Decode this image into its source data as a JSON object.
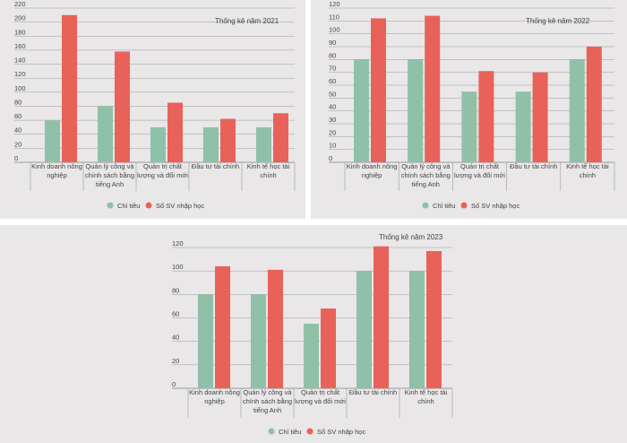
{
  "colors": {
    "target": "#8fc1a8",
    "enrolled": "#e8625a",
    "panel_bg": "#e9e7e8",
    "grid": "#9a9a9a"
  },
  "legend": {
    "target": "Chỉ tiêu",
    "enrolled": "Số SV nhập học"
  },
  "chart_data": [
    {
      "type": "bar",
      "title": "Thống kê năm 2021",
      "categories": [
        [
          "Kinh doanh nông",
          "nghiệp"
        ],
        [
          "Quản lý công và",
          "chính sách bằng",
          "tiếng Anh"
        ],
        [
          "Quản trị chất",
          "lượng và đổi mới"
        ],
        [
          "Đầu tư tài chính"
        ],
        [
          "Kinh tế học tài",
          "chính"
        ]
      ],
      "series": [
        {
          "name": "Chỉ tiêu",
          "values": [
            60,
            80,
            50,
            50,
            50
          ]
        },
        {
          "name": "Số SV nhập học",
          "values": [
            210,
            158,
            85,
            62,
            70
          ]
        }
      ],
      "yticks": [
        0,
        20,
        40,
        60,
        80,
        100,
        120,
        140,
        160,
        180,
        200,
        220
      ],
      "ylim": [
        0,
        220
      ],
      "legend_position": "bottom"
    },
    {
      "type": "bar",
      "title": "Thống kê năm 2022",
      "categories": [
        [
          "Kinh doanh nông",
          "nghiệp"
        ],
        [
          "Quản lý công và",
          "chính sách bằng",
          "tiếng Anh"
        ],
        [
          "Quản trị chất",
          "lượng và đổi mới"
        ],
        [
          "Đầu tư tài chính"
        ],
        [
          "Kinh tế học tài",
          "chính"
        ]
      ],
      "series": [
        {
          "name": "Chỉ tiêu",
          "values": [
            80,
            80,
            55,
            55,
            80
          ]
        },
        {
          "name": "Số SV nhập học",
          "values": [
            112,
            114,
            71,
            70,
            90
          ]
        }
      ],
      "yticks": [
        0,
        10,
        20,
        30,
        40,
        50,
        60,
        70,
        80,
        90,
        100,
        110,
        120
      ],
      "ylim": [
        0,
        120
      ],
      "legend_position": "bottom"
    },
    {
      "type": "bar",
      "title": "Thống kê năm 2023",
      "categories": [
        [
          "Kinh doanh nông",
          "nghiệp"
        ],
        [
          "Quản lý công và",
          "chính sách bằng",
          "tiếng Anh"
        ],
        [
          "Quản trị chất",
          "lượng và đổi mới"
        ],
        [
          "Đầu tư tài chính"
        ],
        [
          "Kinh tế học tài",
          "chính"
        ]
      ],
      "series": [
        {
          "name": "Chỉ tiêu",
          "values": [
            80,
            80,
            55,
            100,
            100
          ]
        },
        {
          "name": "Số SV nhập học",
          "values": [
            104,
            101,
            68,
            121,
            117
          ]
        }
      ],
      "yticks": [
        0,
        20,
        40,
        60,
        80,
        100,
        120
      ],
      "ylim": [
        0,
        120
      ],
      "legend_position": "bottom"
    }
  ]
}
